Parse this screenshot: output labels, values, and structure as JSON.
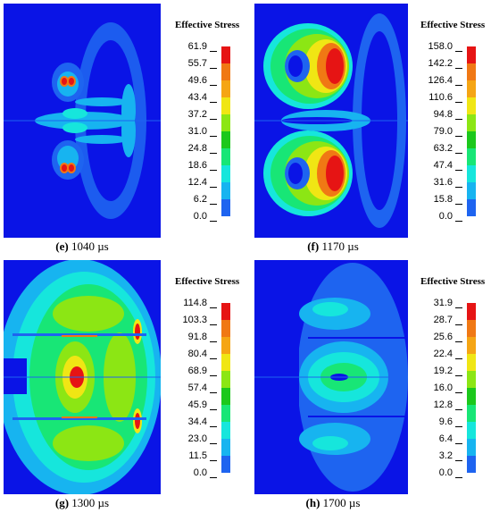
{
  "colors": [
    "#0a14e6",
    "#1e64f0",
    "#17b4f0",
    "#16e6dc",
    "#18e676",
    "#1cc81c",
    "#8ce614",
    "#f0e614",
    "#f5a514",
    "#f07814",
    "#e61414"
  ],
  "panels": [
    {
      "letter": "(e)",
      "time": "1040 µs",
      "legend_title": "Effective Stress",
      "ticks": [
        "61.9",
        "55.7",
        "49.6",
        "43.4",
        "37.2",
        "31.0",
        "24.8",
        "18.6",
        "12.4",
        "6.2",
        "0.0"
      ]
    },
    {
      "letter": "(f)",
      "time": "1170 µs",
      "legend_title": "Effective Stress",
      "ticks": [
        "158.0",
        "142.2",
        "126.4",
        "110.6",
        "94.8",
        "79.0",
        "63.2",
        "47.4",
        "31.6",
        "15.8",
        "0.0"
      ]
    },
    {
      "letter": "(g)",
      "time": "1300 µs",
      "legend_title": "Effective Stress",
      "ticks": [
        "114.8",
        "103.3",
        "91.8",
        "80.4",
        "68.9",
        "57.4",
        "45.9",
        "34.4",
        "23.0",
        "11.5",
        "0.0"
      ]
    },
    {
      "letter": "(h)",
      "time": "1700 µs",
      "legend_title": "Effective Stress",
      "ticks": [
        "31.9",
        "28.7",
        "25.6",
        "22.4",
        "19.2",
        "16.0",
        "12.8",
        "9.6",
        "6.4",
        "3.2",
        "0.0"
      ]
    }
  ]
}
